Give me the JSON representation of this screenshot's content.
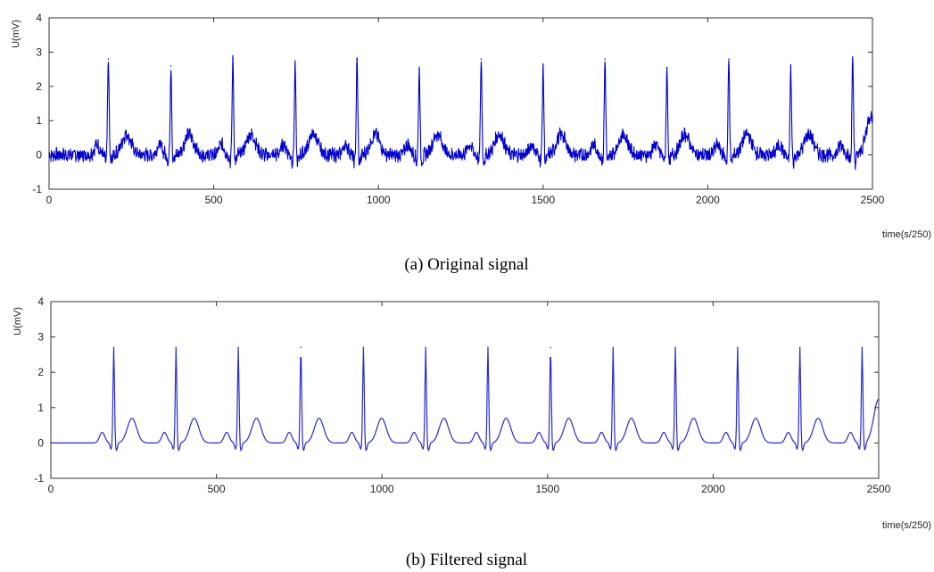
{
  "chart_data": [
    {
      "type": "line",
      "title": "",
      "caption": "(a) Original signal",
      "xlabel": "time(s/250)",
      "ylabel": "U(mV)",
      "xlim": [
        0,
        2500
      ],
      "ylim": [
        -1,
        4
      ],
      "xticks": [
        0,
        500,
        1000,
        1500,
        2000,
        2500
      ],
      "yticks": [
        -1,
        0,
        1,
        2,
        3,
        4
      ],
      "grid": false,
      "noisy": true,
      "color": "#0000cc",
      "r_peaks_x": [
        180,
        370,
        558,
        747,
        935,
        1124,
        1312,
        1500,
        1688,
        1876,
        2064,
        2252,
        2440
      ],
      "r_peaks_y": [
        2.8,
        2.6,
        2.8,
        2.6,
        2.8,
        2.5,
        2.8,
        2.55,
        2.8,
        2.55,
        2.8,
        2.55,
        2.8
      ],
      "baseline_mV": 0,
      "t_wave_mV": 0.6
    },
    {
      "type": "line",
      "title": "",
      "caption": "(b) Filtered signal",
      "xlabel": "time(s/250)",
      "ylabel": "U(mV)",
      "xlim": [
        0,
        2500
      ],
      "ylim": [
        -1,
        4
      ],
      "xticks": [
        0,
        500,
        1000,
        1500,
        2000,
        2500
      ],
      "yticks": [
        -1,
        0,
        1,
        2,
        3,
        4
      ],
      "grid": false,
      "noisy": false,
      "color": "#2a2acc",
      "r_peaks_x": [
        190,
        378,
        566,
        755,
        944,
        1132,
        1320,
        1509,
        1698,
        1886,
        2074,
        2262,
        2450
      ],
      "r_peaks_y": [
        2.7,
        2.7,
        2.7,
        2.7,
        2.7,
        2.7,
        2.7,
        2.7,
        2.7,
        2.7,
        2.7,
        2.7,
        2.7
      ],
      "baseline_mV": 0,
      "t_wave_mV": 0.7
    }
  ]
}
